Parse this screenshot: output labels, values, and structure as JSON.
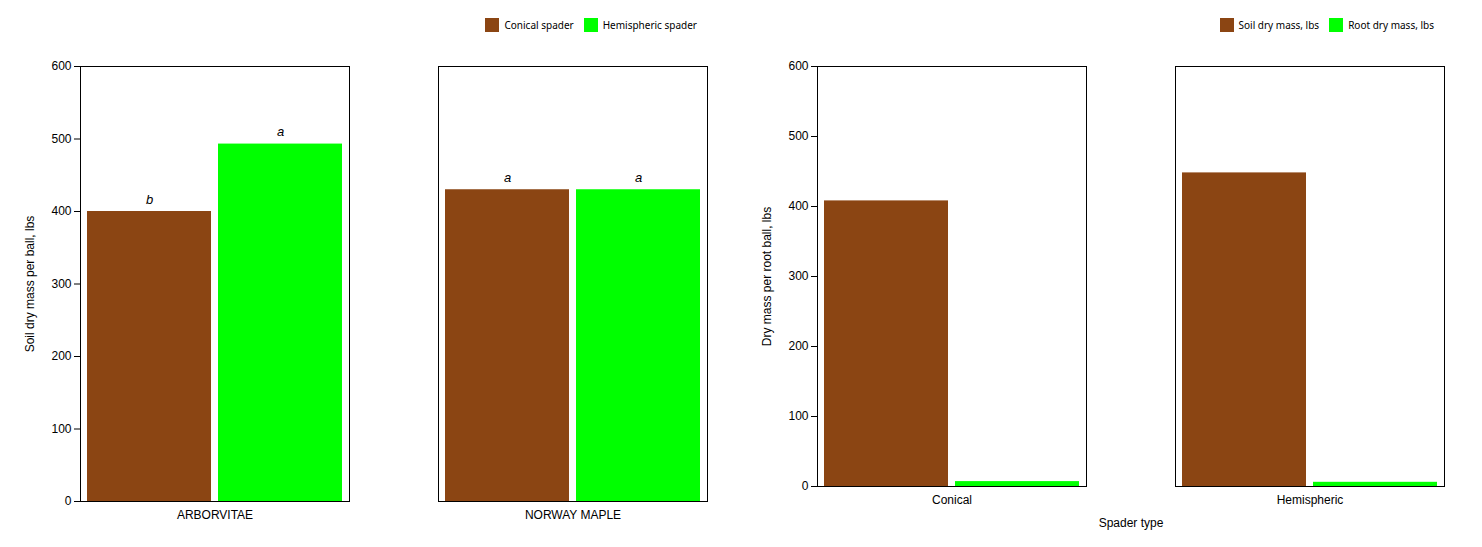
{
  "chart_data": [
    {
      "type": "bar",
      "categories": [
        "ARBORVITAE",
        "NORWAY MAPLE"
      ],
      "series": [
        {
          "name": "Conical spader",
          "color": "#8B4513",
          "values": [
            400,
            430
          ]
        },
        {
          "name": "Hemispheric spader",
          "color": "#00FF00",
          "values": [
            493,
            430
          ]
        }
      ],
      "annotations": [
        {
          "text": "b",
          "category": "ARBORVITAE",
          "series": "Conical spader"
        },
        {
          "text": "a",
          "category": "NORWAY MAPLE",
          "series": "Conical spader"
        },
        {
          "text": "a",
          "category": "ARBORVITAE",
          "series": "Hemispheric spader"
        },
        {
          "text": "a",
          "category": "NORWAY MAPLE",
          "series": "Hemispheric spader"
        }
      ],
      "ylabel": "Soil dry mass per ball, lbs",
      "ylim": [
        0,
        600
      ],
      "yticks": [
        0,
        100,
        200,
        300,
        400,
        500,
        600
      ],
      "legend": "upper right",
      "grid": false
    },
    {
      "type": "bar",
      "categories": [
        "Conical",
        "Hemispheric"
      ],
      "series": [
        {
          "name": "Soil dry mass, lbs",
          "color": "#8B4513",
          "values": [
            408,
            448
          ]
        },
        {
          "name": "Root dry mass, lbs",
          "color": "#00FF00",
          "values": [
            7,
            6
          ]
        }
      ],
      "xlabel": "Spader type",
      "ylabel": "Dry mass per root ball, lbs",
      "ylim": [
        0,
        600
      ],
      "yticks": [
        0,
        100,
        200,
        300,
        400,
        500,
        600
      ],
      "legend": "upper right",
      "grid": false
    }
  ]
}
